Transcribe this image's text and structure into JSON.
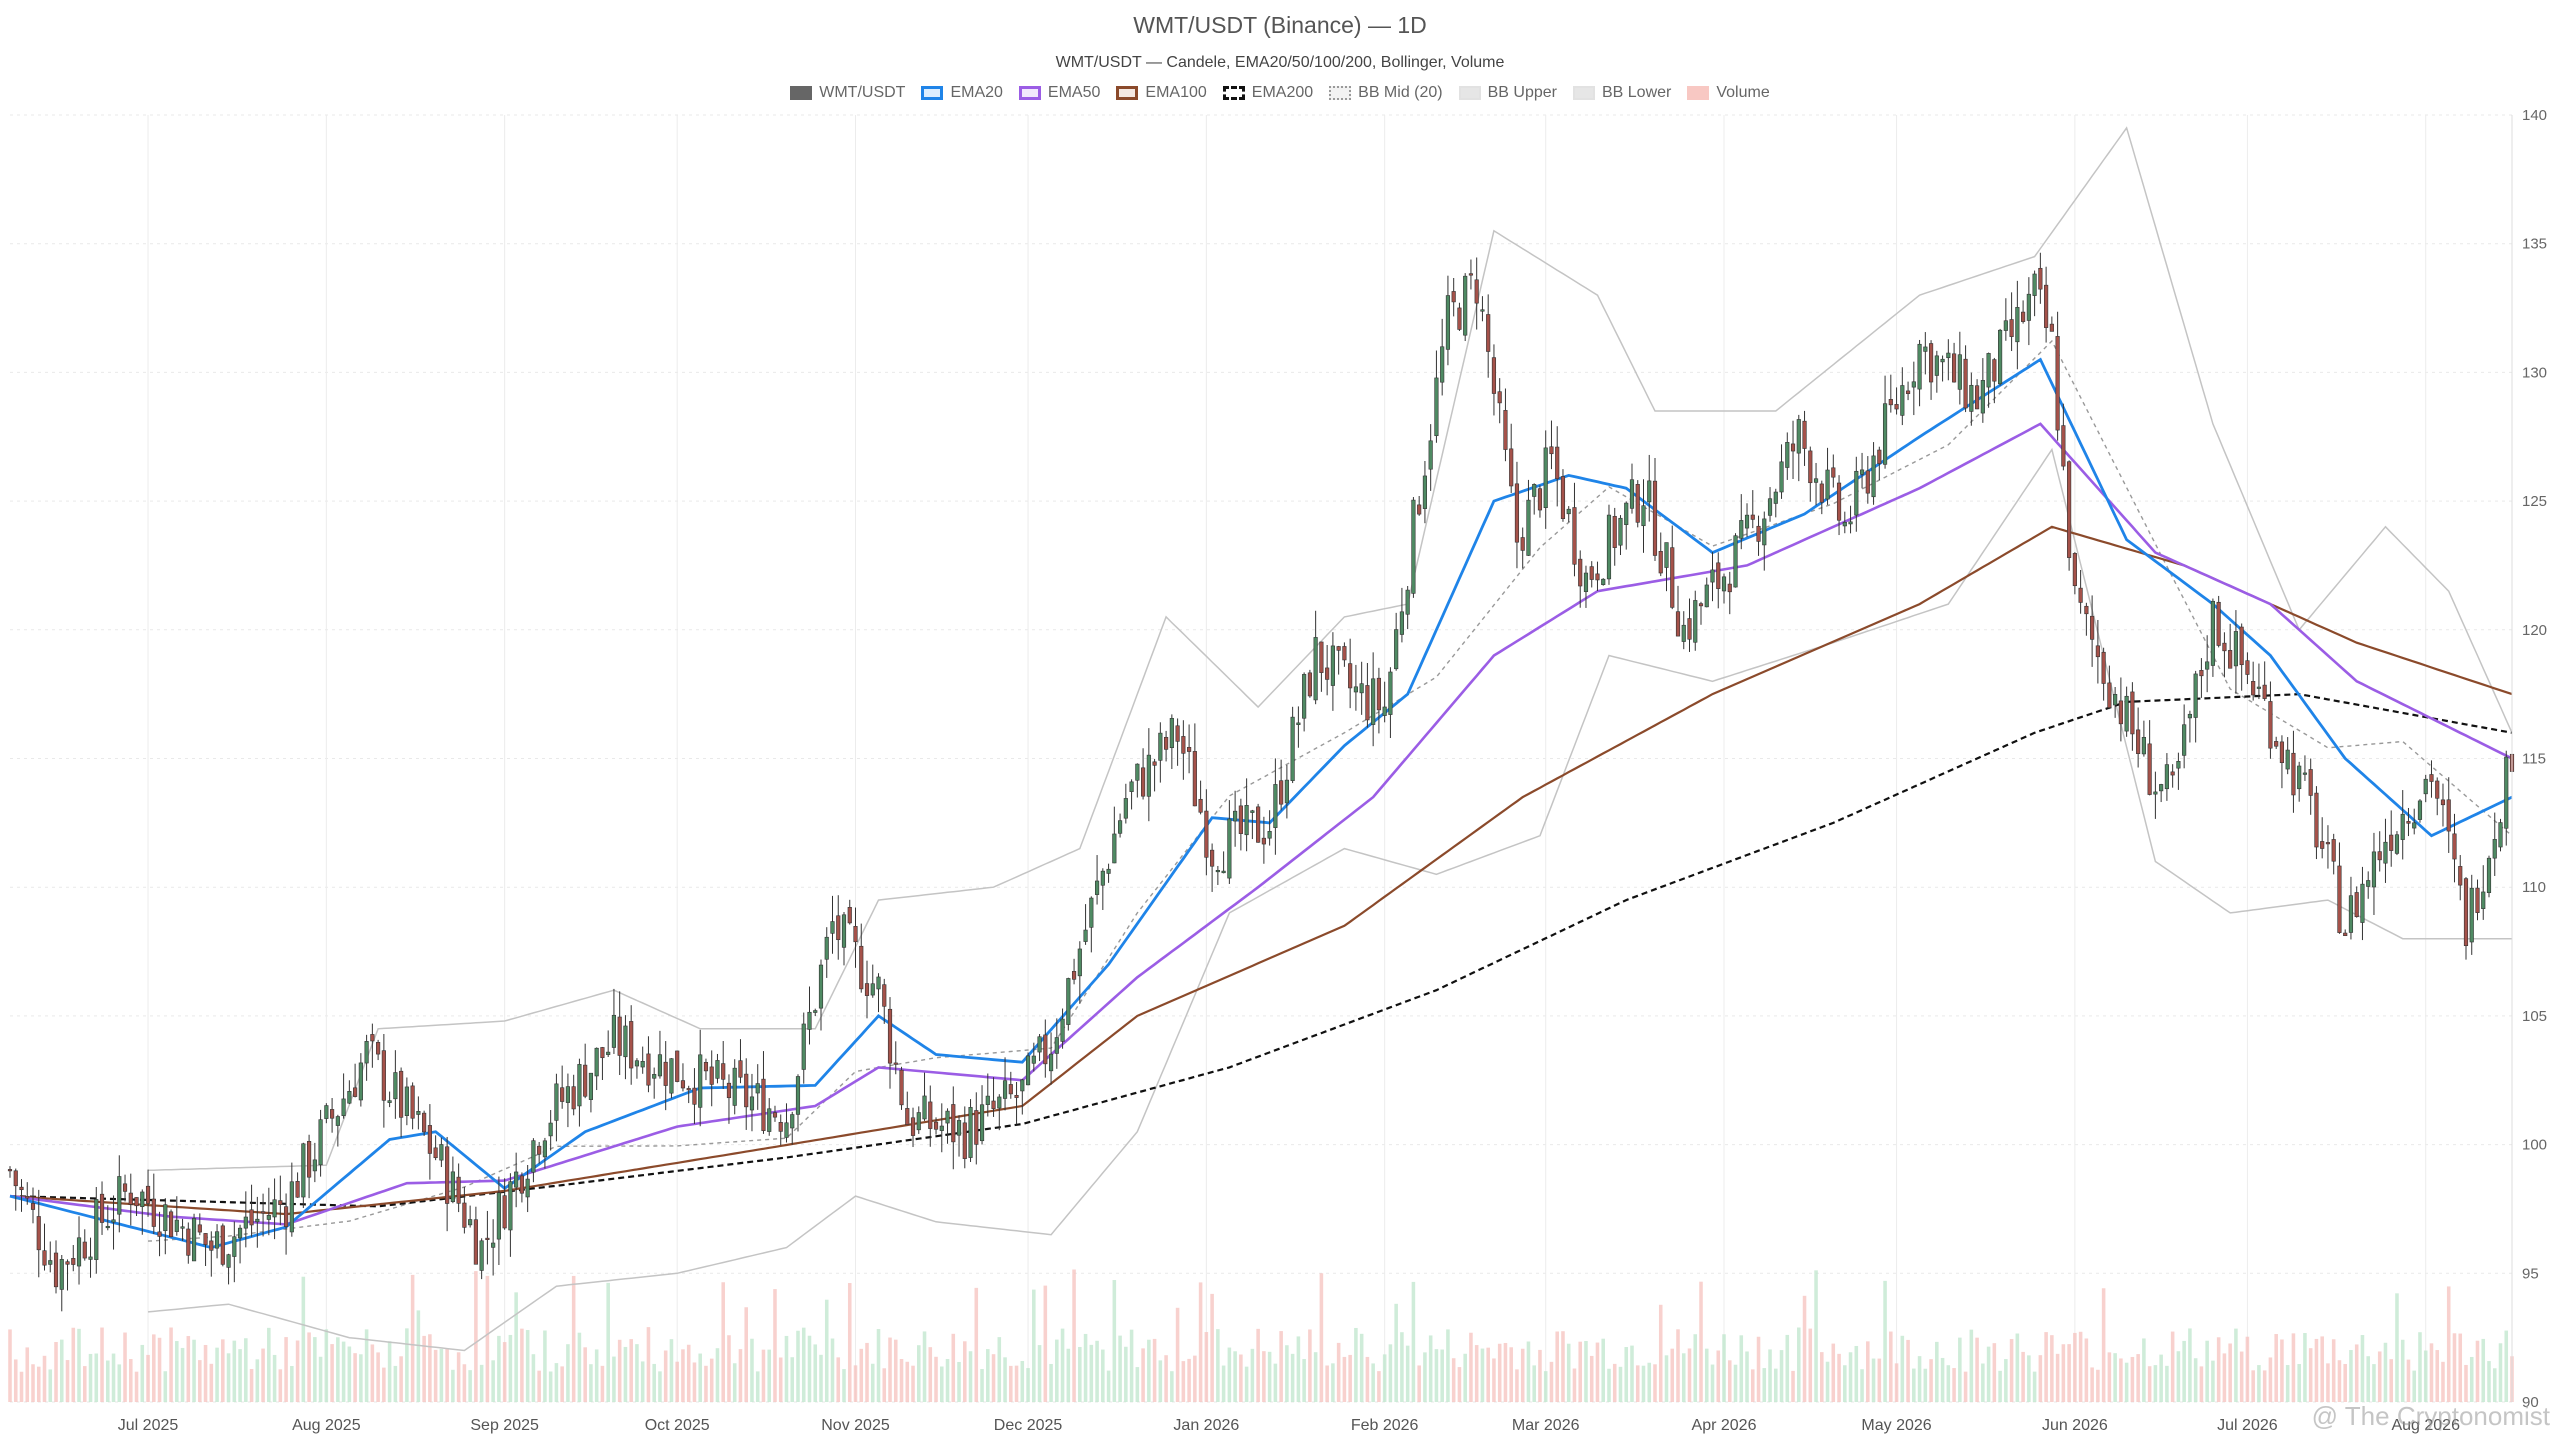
{
  "chart": {
    "title": "WMT/USDT (Binance) — 1D",
    "subtitle": "WMT/USDT — Candele, EMA20/50/100/200, Bollinger, Volume",
    "watermark": "@ The Cryptonomist"
  },
  "legend": [
    {
      "label": "WMT/USDT",
      "color": "#666666",
      "style": "solid-fill"
    },
    {
      "label": "EMA20",
      "color": "#1f84e8",
      "style": "line"
    },
    {
      "label": "EMA50",
      "color": "#9b5de5",
      "style": "line"
    },
    {
      "label": "EMA100",
      "color": "#8b4a2b",
      "style": "line"
    },
    {
      "label": "EMA200",
      "color": "#111111",
      "style": "dashed"
    },
    {
      "label": "BB Mid (20)",
      "color": "#999999",
      "style": "dotted"
    },
    {
      "label": "BB Upper",
      "color": "#bbbbbb",
      "style": "band"
    },
    {
      "label": "BB Lower",
      "color": "#bbbbbb",
      "style": "band"
    },
    {
      "label": "Volume",
      "color": "#f4a6a0",
      "style": "bar"
    }
  ],
  "chart_data": {
    "type": "candlestick",
    "x_ticks": [
      "Jul 2025",
      "Aug 2025",
      "Sep 2025",
      "Oct 2025",
      "Nov 2025",
      "Dec 2025",
      "Jan 2026",
      "Feb 2026",
      "Mar 2026",
      "Apr 2026",
      "May 2026",
      "Jun 2026",
      "Jul 2026",
      "Aug 2026"
    ],
    "y_ticks": [
      90,
      95,
      100,
      105,
      110,
      115,
      120,
      125,
      130,
      135,
      140
    ],
    "ylim": [
      90,
      140
    ],
    "x_range": [
      "2025-06-07",
      "2026-08-16"
    ],
    "up_color": "#4f8a63",
    "down_color": "#a5524a",
    "grid": true,
    "legend_position": "top-center",
    "price_keypoints": [
      {
        "date": "2025-06-07",
        "close": 99.0
      },
      {
        "date": "2025-06-15",
        "close": 95.2
      },
      {
        "date": "2025-06-28",
        "close": 98.3
      },
      {
        "date": "2025-07-12",
        "close": 96.0
      },
      {
        "date": "2025-07-25",
        "close": 97.8
      },
      {
        "date": "2025-08-08",
        "close": 103.5
      },
      {
        "date": "2025-08-20",
        "close": 99.6
      },
      {
        "date": "2025-08-28",
        "close": 96.0
      },
      {
        "date": "2025-09-08",
        "close": 101.0
      },
      {
        "date": "2025-09-20",
        "close": 104.0
      },
      {
        "date": "2025-10-05",
        "close": 102.5
      },
      {
        "date": "2025-10-20",
        "close": 101.2
      },
      {
        "date": "2025-10-28",
        "close": 108.5
      },
      {
        "date": "2025-11-05",
        "close": 106.0
      },
      {
        "date": "2025-11-10",
        "close": 101.0
      },
      {
        "date": "2025-11-20",
        "close": 100.5
      },
      {
        "date": "2025-11-30",
        "close": 102.0
      },
      {
        "date": "2025-12-05",
        "close": 104.0
      },
      {
        "date": "2025-12-18",
        "close": 113.5
      },
      {
        "date": "2025-12-27",
        "close": 116.0
      },
      {
        "date": "2026-01-02",
        "close": 111.5
      },
      {
        "date": "2026-01-12",
        "close": 112.5
      },
      {
        "date": "2026-01-20",
        "close": 119.0
      },
      {
        "date": "2026-01-27",
        "close": 117.5
      },
      {
        "date": "2026-02-01",
        "close": 117.0
      },
      {
        "date": "2026-02-06",
        "close": 124.0
      },
      {
        "date": "2026-02-12",
        "close": 132.0
      },
      {
        "date": "2026-02-17",
        "close": 133.5
      },
      {
        "date": "2026-02-24",
        "close": 123.5
      },
      {
        "date": "2026-03-02",
        "close": 126.5
      },
      {
        "date": "2026-03-08",
        "close": 122.0
      },
      {
        "date": "2026-03-18",
        "close": 125.5
      },
      {
        "date": "2026-03-25",
        "close": 120.0
      },
      {
        "date": "2026-04-05",
        "close": 123.5
      },
      {
        "date": "2026-04-14",
        "close": 127.5
      },
      {
        "date": "2026-04-22",
        "close": 124.0
      },
      {
        "date": "2026-05-05",
        "close": 131.0
      },
      {
        "date": "2026-05-15",
        "close": 129.0
      },
      {
        "date": "2026-05-25",
        "close": 133.0
      },
      {
        "date": "2026-05-28",
        "close": 131.0
      },
      {
        "date": "2026-06-01",
        "close": 121.0
      },
      {
        "date": "2026-06-08",
        "close": 117.5
      },
      {
        "date": "2026-06-15",
        "close": 114.0
      },
      {
        "date": "2026-06-18",
        "close": 113.5
      },
      {
        "date": "2026-06-25",
        "close": 120.5
      },
      {
        "date": "2026-07-03",
        "close": 117.5
      },
      {
        "date": "2026-07-12",
        "close": 113.0
      },
      {
        "date": "2026-07-18",
        "close": 108.5
      },
      {
        "date": "2026-07-25",
        "close": 112.0
      },
      {
        "date": "2026-08-02",
        "close": 114.5
      },
      {
        "date": "2026-08-08",
        "close": 108.5
      },
      {
        "date": "2026-08-13",
        "close": 112.5
      },
      {
        "date": "2026-08-16",
        "close": 115.5
      }
    ],
    "ema20_keypoints": [
      {
        "date": "2025-06-07",
        "value": 98.0
      },
      {
        "date": "2025-07-12",
        "value": 96.0
      },
      {
        "date": "2025-07-25",
        "value": 96.8
      },
      {
        "date": "2025-08-12",
        "value": 100.2
      },
      {
        "date": "2025-08-20",
        "value": 100.5
      },
      {
        "date": "2025-09-01",
        "value": 98.3
      },
      {
        "date": "2025-09-15",
        "value": 100.5
      },
      {
        "date": "2025-10-05",
        "value": 102.2
      },
      {
        "date": "2025-10-25",
        "value": 102.3
      },
      {
        "date": "2025-11-05",
        "value": 105.0
      },
      {
        "date": "2025-11-15",
        "value": 103.5
      },
      {
        "date": "2025-11-30",
        "value": 103.2
      },
      {
        "date": "2025-12-15",
        "value": 107.0
      },
      {
        "date": "2026-01-02",
        "value": 112.7
      },
      {
        "date": "2026-01-12",
        "value": 112.5
      },
      {
        "date": "2026-01-25",
        "value": 115.5
      },
      {
        "date": "2026-02-05",
        "value": 117.5
      },
      {
        "date": "2026-02-20",
        "value": 125.0
      },
      {
        "date": "2026-03-05",
        "value": 126.0
      },
      {
        "date": "2026-03-15",
        "value": 125.5
      },
      {
        "date": "2026-03-30",
        "value": 123.0
      },
      {
        "date": "2026-04-15",
        "value": 124.5
      },
      {
        "date": "2026-05-05",
        "value": 127.5
      },
      {
        "date": "2026-05-26",
        "value": 130.5
      },
      {
        "date": "2026-06-10",
        "value": 123.5
      },
      {
        "date": "2026-06-25",
        "value": 121.0
      },
      {
        "date": "2026-07-05",
        "value": 119.0
      },
      {
        "date": "2026-07-18",
        "value": 115.0
      },
      {
        "date": "2026-08-02",
        "value": 112.0
      },
      {
        "date": "2026-08-16",
        "value": 113.5
      }
    ],
    "ema50_keypoints": [
      {
        "date": "2025-06-07",
        "value": 98.0
      },
      {
        "date": "2025-07-05",
        "value": 97.2
      },
      {
        "date": "2025-07-25",
        "value": 96.9
      },
      {
        "date": "2025-08-15",
        "value": 98.5
      },
      {
        "date": "2025-09-01",
        "value": 98.6
      },
      {
        "date": "2025-10-01",
        "value": 100.7
      },
      {
        "date": "2025-10-25",
        "value": 101.5
      },
      {
        "date": "2025-11-05",
        "value": 103.0
      },
      {
        "date": "2025-11-30",
        "value": 102.5
      },
      {
        "date": "2025-12-20",
        "value": 106.5
      },
      {
        "date": "2026-01-10",
        "value": 110.0
      },
      {
        "date": "2026-01-30",
        "value": 113.5
      },
      {
        "date": "2026-02-20",
        "value": 119.0
      },
      {
        "date": "2026-03-10",
        "value": 121.5
      },
      {
        "date": "2026-04-05",
        "value": 122.5
      },
      {
        "date": "2026-05-05",
        "value": 125.5
      },
      {
        "date": "2026-05-26",
        "value": 128.0
      },
      {
        "date": "2026-06-15",
        "value": 123.0
      },
      {
        "date": "2026-07-05",
        "value": 121.0
      },
      {
        "date": "2026-07-20",
        "value": 118.0
      },
      {
        "date": "2026-08-16",
        "value": 115.0
      }
    ],
    "ema100_keypoints": [
      {
        "date": "2025-06-07",
        "value": 98.0
      },
      {
        "date": "2025-07-25",
        "value": 97.3
      },
      {
        "date": "2025-09-01",
        "value": 98.2
      },
      {
        "date": "2025-10-15",
        "value": 99.8
      },
      {
        "date": "2025-11-30",
        "value": 101.5
      },
      {
        "date": "2025-12-20",
        "value": 105.0
      },
      {
        "date": "2026-01-25",
        "value": 108.5
      },
      {
        "date": "2026-02-25",
        "value": 113.5
      },
      {
        "date": "2026-03-30",
        "value": 117.5
      },
      {
        "date": "2026-05-05",
        "value": 121.0
      },
      {
        "date": "2026-05-28",
        "value": 124.0
      },
      {
        "date": "2026-06-20",
        "value": 122.5
      },
      {
        "date": "2026-07-20",
        "value": 119.5
      },
      {
        "date": "2026-08-16",
        "value": 117.5
      }
    ],
    "ema200_keypoints": [
      {
        "date": "2025-06-07",
        "value": 98.0
      },
      {
        "date": "2025-08-10",
        "value": 97.6
      },
      {
        "date": "2025-09-10",
        "value": 98.4
      },
      {
        "date": "2025-10-20",
        "value": 99.5
      },
      {
        "date": "2025-11-30",
        "value": 100.8
      },
      {
        "date": "2026-01-05",
        "value": 103.0
      },
      {
        "date": "2026-02-10",
        "value": 106.0
      },
      {
        "date": "2026-03-15",
        "value": 109.5
      },
      {
        "date": "2026-04-20",
        "value": 112.5
      },
      {
        "date": "2026-05-25",
        "value": 116.0
      },
      {
        "date": "2026-06-10",
        "value": 117.2
      },
      {
        "date": "2026-07-10",
        "value": 117.5
      },
      {
        "date": "2026-08-16",
        "value": 116.0
      }
    ],
    "bb_upper_keypoints": [
      {
        "date": "2025-07-01",
        "value": 99.0
      },
      {
        "date": "2025-08-01",
        "value": 99.2
      },
      {
        "date": "2025-08-10",
        "value": 104.5
      },
      {
        "date": "2025-09-01",
        "value": 104.8
      },
      {
        "date": "2025-09-20",
        "value": 106.0
      },
      {
        "date": "2025-10-05",
        "value": 104.5
      },
      {
        "date": "2025-10-25",
        "value": 104.5
      },
      {
        "date": "2025-11-05",
        "value": 109.5
      },
      {
        "date": "2025-11-25",
        "value": 110.0
      },
      {
        "date": "2025-12-10",
        "value": 111.5
      },
      {
        "date": "2025-12-25",
        "value": 120.5
      },
      {
        "date": "2026-01-10",
        "value": 117.0
      },
      {
        "date": "2026-01-25",
        "value": 120.5
      },
      {
        "date": "2026-02-05",
        "value": 121.0
      },
      {
        "date": "2026-02-20",
        "value": 135.5
      },
      {
        "date": "2026-03-10",
        "value": 133.0
      },
      {
        "date": "2026-03-20",
        "value": 128.5
      },
      {
        "date": "2026-04-10",
        "value": 128.5
      },
      {
        "date": "2026-05-05",
        "value": 133.0
      },
      {
        "date": "2026-05-25",
        "value": 134.5
      },
      {
        "date": "2026-06-10",
        "value": 139.5
      },
      {
        "date": "2026-06-25",
        "value": 128.0
      },
      {
        "date": "2026-07-10",
        "value": 120.0
      },
      {
        "date": "2026-07-25",
        "value": 124.0
      },
      {
        "date": "2026-08-05",
        "value": 121.5
      },
      {
        "date": "2026-08-16",
        "value": 116.0
      }
    ],
    "bb_lower_keypoints": [
      {
        "date": "2025-07-01",
        "value": 93.5
      },
      {
        "date": "2025-07-15",
        "value": 93.8
      },
      {
        "date": "2025-08-05",
        "value": 92.5
      },
      {
        "date": "2025-08-25",
        "value": 92.0
      },
      {
        "date": "2025-09-10",
        "value": 94.5
      },
      {
        "date": "2025-10-01",
        "value": 95.0
      },
      {
        "date": "2025-10-20",
        "value": 96.0
      },
      {
        "date": "2025-11-01",
        "value": 98.0
      },
      {
        "date": "2025-11-15",
        "value": 97.0
      },
      {
        "date": "2025-12-05",
        "value": 96.5
      },
      {
        "date": "2025-12-20",
        "value": 100.5
      },
      {
        "date": "2026-01-05",
        "value": 109.0
      },
      {
        "date": "2026-01-25",
        "value": 111.5
      },
      {
        "date": "2026-02-10",
        "value": 110.5
      },
      {
        "date": "2026-02-28",
        "value": 112.0
      },
      {
        "date": "2026-03-12",
        "value": 119.0
      },
      {
        "date": "2026-03-30",
        "value": 118.0
      },
      {
        "date": "2026-04-20",
        "value": 119.5
      },
      {
        "date": "2026-05-10",
        "value": 121.0
      },
      {
        "date": "2026-05-28",
        "value": 127.0
      },
      {
        "date": "2026-06-15",
        "value": 111.0
      },
      {
        "date": "2026-06-28",
        "value": 109.0
      },
      {
        "date": "2026-07-15",
        "value": 109.5
      },
      {
        "date": "2026-07-28",
        "value": 108.0
      },
      {
        "date": "2026-08-16",
        "value": 108.0
      }
    ]
  }
}
